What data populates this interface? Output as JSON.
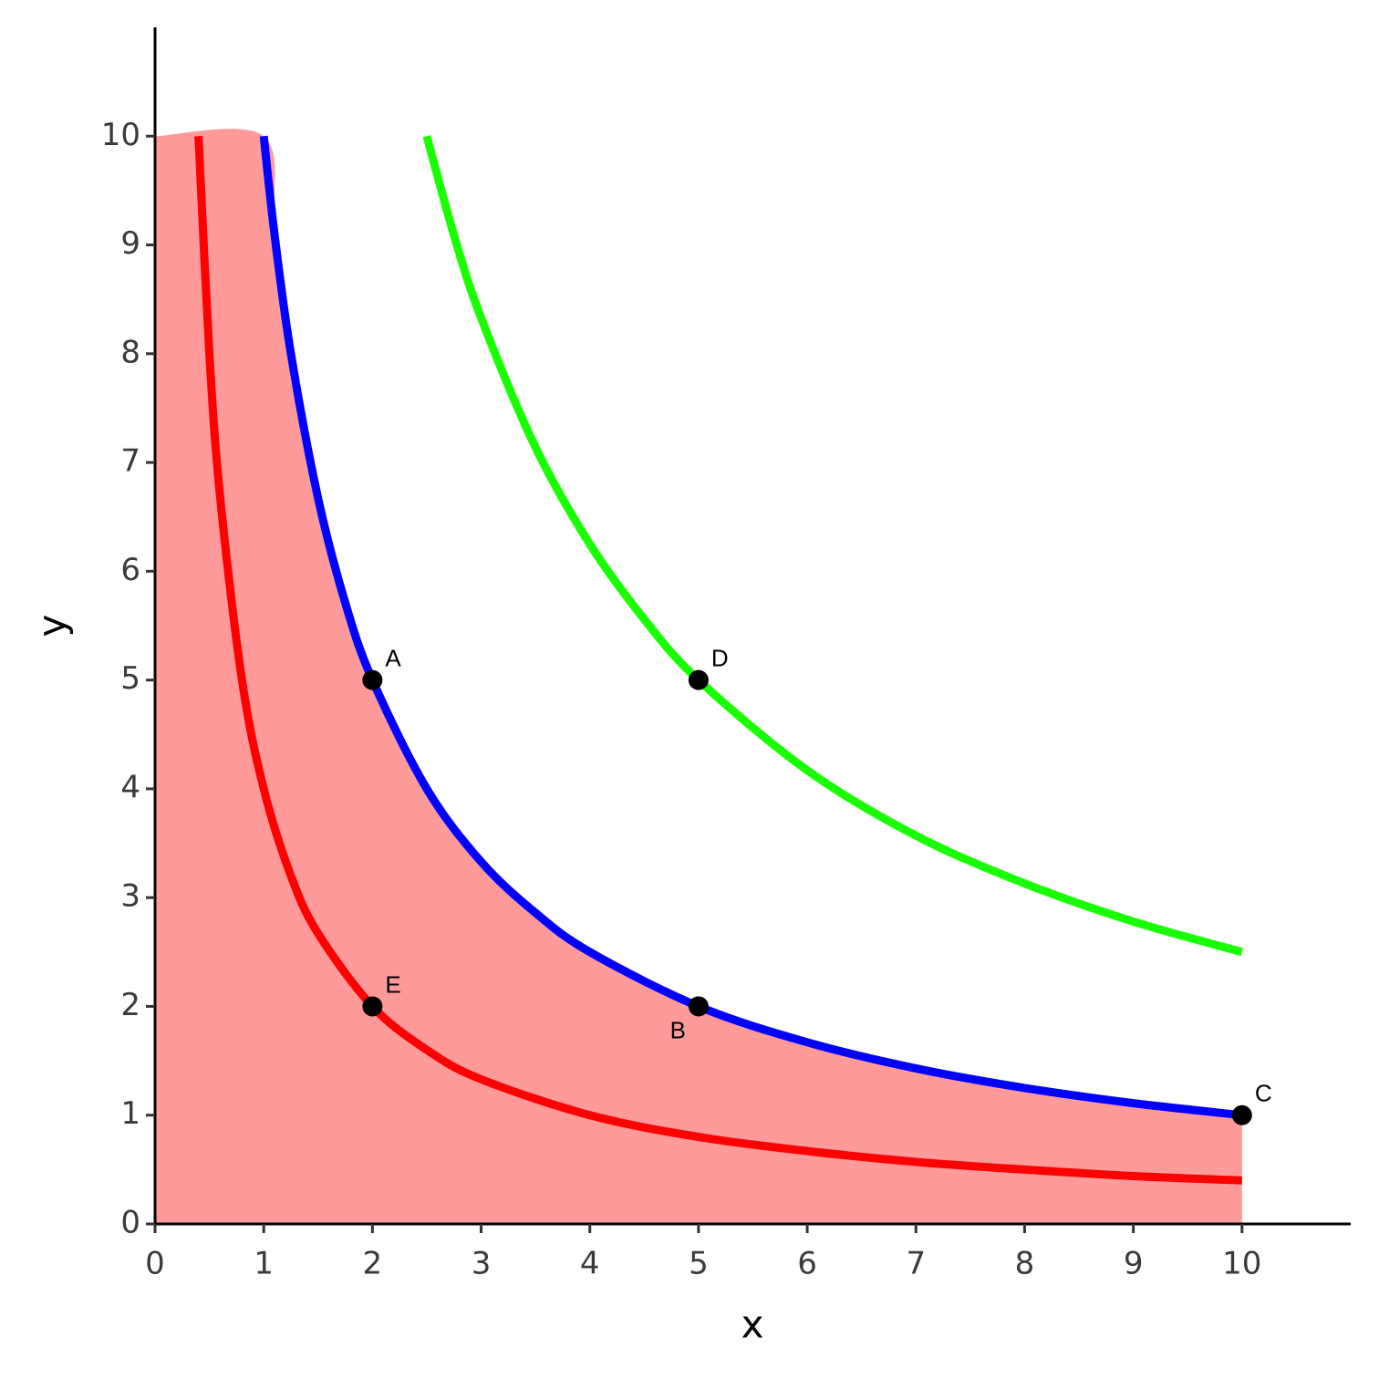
{
  "chart_data": {
    "type": "line",
    "x_label": "x",
    "y_label": "y",
    "xlim": [
      0,
      11
    ],
    "ylim": [
      0,
      11
    ],
    "xticks": [
      0,
      1,
      2,
      3,
      4,
      5,
      6,
      7,
      8,
      9,
      10
    ],
    "yticks": [
      0,
      1,
      2,
      3,
      4,
      5,
      6,
      7,
      8,
      9,
      10
    ],
    "series": [
      {
        "kind": "area",
        "color": "#ff9a9a",
        "x": [
          0,
          1,
          1.1,
          1.25,
          1.5,
          1.75,
          2,
          2.5,
          3,
          3.5,
          4,
          5,
          6,
          7,
          8,
          9,
          10
        ],
        "values": [
          10,
          10,
          9.09,
          8,
          6.67,
          5.71,
          5,
          4,
          3.33,
          2.86,
          2.5,
          2,
          1.67,
          1.43,
          1.25,
          1.11,
          1
        ]
      },
      {
        "kind": "line",
        "color": "#ff0000",
        "x": [
          0.4,
          0.5,
          0.6,
          0.8,
          1,
          1.25,
          1.5,
          2,
          2.5,
          3,
          4,
          5,
          6,
          7,
          8,
          9,
          10
        ],
        "values": [
          10,
          8,
          6.67,
          5,
          4,
          3.2,
          2.67,
          2,
          1.6,
          1.33,
          1,
          0.8,
          0.67,
          0.57,
          0.5,
          0.44,
          0.4
        ]
      },
      {
        "kind": "line",
        "color": "#0000ff",
        "x": [
          1,
          1.1,
          1.25,
          1.5,
          1.75,
          2,
          2.5,
          3,
          3.5,
          4,
          5,
          6,
          7,
          8,
          9,
          10
        ],
        "values": [
          10,
          9.09,
          8,
          6.67,
          5.71,
          5,
          4,
          3.33,
          2.86,
          2.5,
          2,
          1.67,
          1.43,
          1.25,
          1.11,
          1
        ]
      },
      {
        "kind": "line",
        "color": "#1aff00",
        "x": [
          2.5,
          2.75,
          3,
          3.5,
          4,
          4.5,
          5,
          6,
          7,
          8,
          9,
          10
        ],
        "values": [
          10,
          9.09,
          8.33,
          7.14,
          6.25,
          5.56,
          5,
          4.17,
          3.57,
          3.13,
          2.78,
          2.5
        ]
      }
    ],
    "points": [
      {
        "label": "A",
        "x": 2,
        "y": 5,
        "label_side": "upper-right"
      },
      {
        "label": "B",
        "x": 5,
        "y": 2,
        "label_side": "lower-left"
      },
      {
        "label": "C",
        "x": 10,
        "y": 1,
        "label_side": "upper-right"
      },
      {
        "label": "D",
        "x": 5,
        "y": 5,
        "label_side": "upper-right"
      },
      {
        "label": "E",
        "x": 2,
        "y": 2,
        "label_side": "upper-right"
      }
    ]
  }
}
